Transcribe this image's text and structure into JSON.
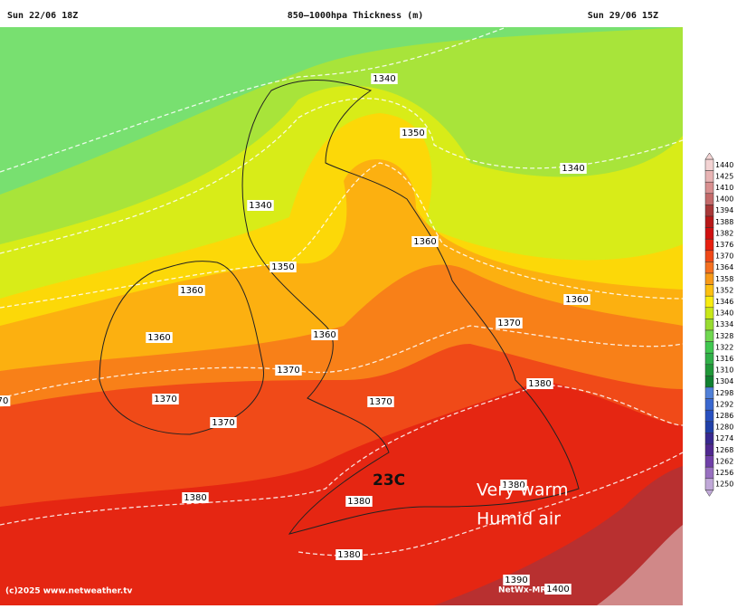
{
  "header": {
    "left": "Sun 22/06 18Z",
    "title": "850–1000hpa Thickness (m)",
    "right": "Sun 29/06 15Z"
  },
  "contour_labels": [
    "1340",
    "1350",
    "1340",
    "1340",
    "1360",
    "1350",
    "1360",
    "1360",
    "1370",
    "1360",
    "1360",
    "1370",
    "1380",
    "70",
    "1370",
    "1370",
    "1370",
    "1380",
    "1380",
    "1380",
    "1380",
    "1390",
    "1400"
  ],
  "annotations": {
    "temperature": "23C",
    "line1": "Very warm",
    "line2": "Humid air"
  },
  "footer": {
    "copyright": "(c)2025 www.netweather.tv",
    "model": "NetWx-MR"
  },
  "legend": {
    "entries": [
      {
        "label": "1440",
        "color": "#f3d3d3"
      },
      {
        "label": "1425",
        "color": "#e8b4b4"
      },
      {
        "label": "1410",
        "color": "#d99090"
      },
      {
        "label": "1400",
        "color": "#c46a6a"
      },
      {
        "label": "1394",
        "color": "#a83838"
      },
      {
        "label": "1388",
        "color": "#b81818"
      },
      {
        "label": "1382",
        "color": "#d01010"
      },
      {
        "label": "1376",
        "color": "#e82010"
      },
      {
        "label": "1370",
        "color": "#f04818"
      },
      {
        "label": "1364",
        "color": "#f57020"
      },
      {
        "label": "1358",
        "color": "#f89a18"
      },
      {
        "label": "1352",
        "color": "#fcc010"
      },
      {
        "label": "1346",
        "color": "#f8ec10"
      },
      {
        "label": "1340",
        "color": "#c8e818"
      },
      {
        "label": "1334",
        "color": "#98dc30"
      },
      {
        "label": "1328",
        "color": "#70d850"
      },
      {
        "label": "1322",
        "color": "#40c850"
      },
      {
        "label": "1316",
        "color": "#30b048"
      },
      {
        "label": "1310",
        "color": "#209838"
      },
      {
        "label": "1304",
        "color": "#108030"
      },
      {
        "label": "1298",
        "color": "#5080d8"
      },
      {
        "label": "1292",
        "color": "#3a68d0"
      },
      {
        "label": "1286",
        "color": "#2850c0"
      },
      {
        "label": "1280",
        "color": "#2040a8"
      },
      {
        "label": "1274",
        "color": "#382890"
      },
      {
        "label": "1268",
        "color": "#502890"
      },
      {
        "label": "1262",
        "color": "#7040a8"
      },
      {
        "label": "1256",
        "color": "#9870c0"
      },
      {
        "label": "1250",
        "color": "#c0a8d8"
      }
    ]
  }
}
